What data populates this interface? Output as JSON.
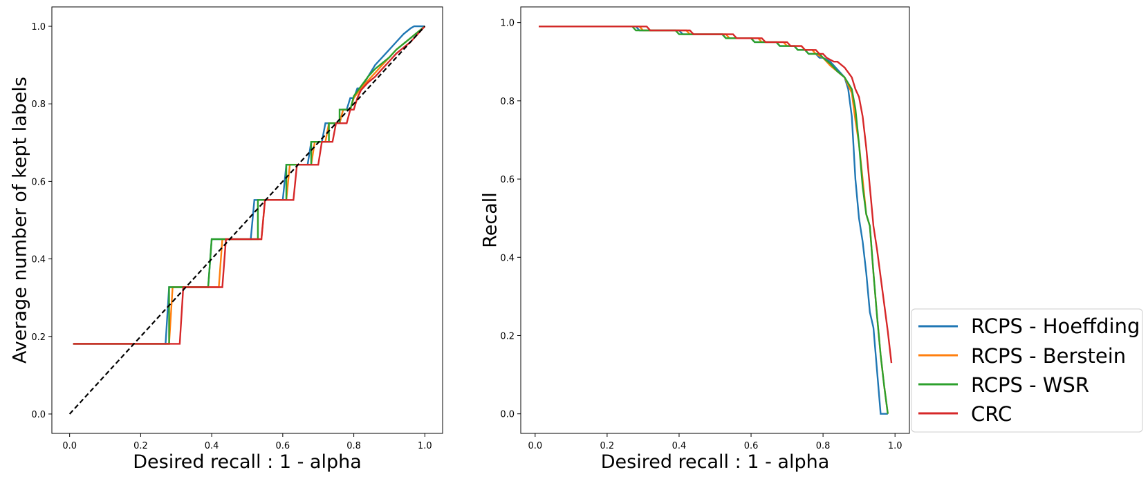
{
  "colors": {
    "hoeffding": "#1f77b4",
    "berstein": "#ff7f0e",
    "wsr": "#2ca02c",
    "crc": "#d62728",
    "diagonal": "#000000"
  },
  "legend": {
    "placement": "lower-right, outside right panel",
    "entries": [
      "RCPS - Hoeffding",
      "RCPS - Berstein",
      "RCPS - WSR",
      "CRC"
    ]
  },
  "chart_data": [
    {
      "type": "line",
      "title": "",
      "xlabel": "Desired recall : 1 - alpha",
      "ylabel": "Average number of kept labels",
      "xlim": [
        -0.05,
        1.05
      ],
      "ylim": [
        -0.05,
        1.05
      ],
      "xticks": [
        "0.0",
        "0.2",
        "0.4",
        "0.6",
        "0.8",
        "1.0"
      ],
      "yticks": [
        "0.0",
        "0.2",
        "0.4",
        "0.6",
        "0.8",
        "1.0"
      ],
      "grid": false,
      "reference_line": {
        "x": [
          0,
          1
        ],
        "y": [
          0,
          1
        ],
        "style": "dashed"
      },
      "series": [
        {
          "name": "RCPS - Hoeffding",
          "color_key": "hoeffding",
          "x": [
            0.01,
            0.27,
            0.28,
            0.3,
            0.31,
            0.39,
            0.4,
            0.51,
            0.52,
            0.6,
            0.61,
            0.67,
            0.68,
            0.71,
            0.72,
            0.76,
            0.77,
            0.78,
            0.79,
            0.8,
            0.81,
            0.82,
            0.84,
            0.86,
            0.88,
            0.9,
            0.92,
            0.94,
            0.96,
            0.97,
            1.0
          ],
          "y": [
            0.181,
            0.181,
            0.327,
            0.327,
            0.327,
            0.327,
            0.451,
            0.451,
            0.552,
            0.552,
            0.643,
            0.643,
            0.702,
            0.702,
            0.75,
            0.75,
            0.785,
            0.785,
            0.815,
            0.815,
            0.84,
            0.84,
            0.87,
            0.9,
            0.92,
            0.94,
            0.96,
            0.98,
            0.995,
            1.0,
            1.0
          ]
        },
        {
          "name": "RCPS - Berstein",
          "color_key": "berstein",
          "x": [
            0.01,
            0.28,
            0.29,
            0.42,
            0.43,
            0.54,
            0.55,
            0.61,
            0.62,
            0.68,
            0.69,
            0.72,
            0.73,
            0.76,
            0.77,
            0.79,
            0.8,
            0.82,
            0.84,
            0.86,
            0.88,
            0.9,
            0.92,
            0.94,
            0.96,
            0.98,
            1.0
          ],
          "y": [
            0.181,
            0.181,
            0.327,
            0.327,
            0.451,
            0.451,
            0.552,
            0.552,
            0.643,
            0.643,
            0.702,
            0.702,
            0.75,
            0.75,
            0.785,
            0.785,
            0.815,
            0.84,
            0.86,
            0.88,
            0.9,
            0.92,
            0.94,
            0.955,
            0.97,
            0.985,
            1.0
          ]
        },
        {
          "name": "RCPS - WSR",
          "color_key": "wsr",
          "x": [
            0.01,
            0.28,
            0.28,
            0.39,
            0.4,
            0.53,
            0.53,
            0.61,
            0.61,
            0.68,
            0.68,
            0.73,
            0.73,
            0.76,
            0.76,
            0.79,
            0.8,
            0.82,
            0.84,
            0.86,
            0.88,
            0.9,
            0.92,
            0.94,
            0.96,
            0.98,
            1.0
          ],
          "y": [
            0.181,
            0.181,
            0.327,
            0.327,
            0.451,
            0.451,
            0.552,
            0.552,
            0.643,
            0.643,
            0.702,
            0.702,
            0.75,
            0.75,
            0.785,
            0.785,
            0.82,
            0.845,
            0.87,
            0.89,
            0.905,
            0.92,
            0.94,
            0.955,
            0.97,
            0.985,
            1.0
          ]
        },
        {
          "name": "CRC",
          "color_key": "crc",
          "x": [
            0.01,
            0.31,
            0.32,
            0.43,
            0.44,
            0.54,
            0.55,
            0.63,
            0.64,
            0.7,
            0.71,
            0.74,
            0.75,
            0.78,
            0.79,
            0.8,
            0.81,
            0.82,
            0.84,
            0.86,
            0.88,
            0.9,
            0.92,
            0.94,
            0.96,
            0.98,
            1.0
          ],
          "y": [
            0.181,
            0.181,
            0.327,
            0.327,
            0.451,
            0.451,
            0.552,
            0.552,
            0.643,
            0.643,
            0.702,
            0.702,
            0.75,
            0.75,
            0.785,
            0.785,
            0.815,
            0.835,
            0.855,
            0.87,
            0.89,
            0.91,
            0.93,
            0.945,
            0.96,
            0.98,
            1.0
          ]
        }
      ]
    },
    {
      "type": "line",
      "title": "",
      "xlabel": "Desired recall : 1 - alpha",
      "ylabel": "Recall",
      "xlim": [
        -0.04,
        1.04
      ],
      "ylim": [
        -0.05,
        1.04
      ],
      "xticks": [
        "0.0",
        "0.2",
        "0.4",
        "0.6",
        "0.8",
        "1.0"
      ],
      "yticks": [
        "0.0",
        "0.2",
        "0.4",
        "0.6",
        "0.8",
        "1.0"
      ],
      "grid": false,
      "series": [
        {
          "name": "RCPS - Hoeffding",
          "color_key": "hoeffding",
          "x": [
            0.01,
            0.28,
            0.29,
            0.4,
            0.41,
            0.52,
            0.53,
            0.6,
            0.61,
            0.67,
            0.68,
            0.72,
            0.73,
            0.75,
            0.76,
            0.78,
            0.79,
            0.8,
            0.82,
            0.84,
            0.86,
            0.87,
            0.88,
            0.89,
            0.9,
            0.91,
            0.92,
            0.93,
            0.94,
            0.95,
            0.96,
            0.97,
            0.98
          ],
          "y": [
            0.99,
            0.99,
            0.98,
            0.98,
            0.97,
            0.97,
            0.96,
            0.96,
            0.95,
            0.95,
            0.94,
            0.94,
            0.93,
            0.93,
            0.92,
            0.92,
            0.91,
            0.91,
            0.9,
            0.88,
            0.86,
            0.83,
            0.76,
            0.6,
            0.5,
            0.44,
            0.36,
            0.26,
            0.22,
            0.11,
            0.0,
            0.0,
            0.0
          ]
        },
        {
          "name": "RCPS - Berstein",
          "color_key": "berstein",
          "x": [
            0.01,
            0.29,
            0.3,
            0.42,
            0.43,
            0.53,
            0.54,
            0.62,
            0.63,
            0.69,
            0.7,
            0.74,
            0.75,
            0.77,
            0.78,
            0.8,
            0.82,
            0.84,
            0.86,
            0.88,
            0.89,
            0.9,
            0.91,
            0.92,
            0.93,
            0.94,
            0.95,
            0.96,
            0.97,
            0.98
          ],
          "y": [
            0.99,
            0.99,
            0.98,
            0.98,
            0.97,
            0.97,
            0.96,
            0.96,
            0.95,
            0.95,
            0.94,
            0.94,
            0.93,
            0.93,
            0.92,
            0.91,
            0.89,
            0.875,
            0.86,
            0.82,
            0.75,
            0.69,
            0.6,
            0.51,
            0.48,
            0.36,
            0.25,
            0.15,
            0.07,
            0.0
          ]
        },
        {
          "name": "RCPS - WSR",
          "color_key": "wsr",
          "x": [
            0.01,
            0.27,
            0.28,
            0.39,
            0.4,
            0.52,
            0.53,
            0.6,
            0.61,
            0.67,
            0.68,
            0.72,
            0.73,
            0.75,
            0.76,
            0.79,
            0.8,
            0.82,
            0.84,
            0.86,
            0.88,
            0.89,
            0.9,
            0.91,
            0.92,
            0.93,
            0.94,
            0.95,
            0.96,
            0.97,
            0.98
          ],
          "y": [
            0.99,
            0.99,
            0.98,
            0.98,
            0.97,
            0.97,
            0.96,
            0.96,
            0.95,
            0.95,
            0.94,
            0.94,
            0.93,
            0.93,
            0.92,
            0.92,
            0.91,
            0.895,
            0.875,
            0.86,
            0.83,
            0.78,
            0.69,
            0.58,
            0.51,
            0.48,
            0.36,
            0.25,
            0.15,
            0.07,
            0.0
          ]
        },
        {
          "name": "CRC",
          "color_key": "crc",
          "x": [
            0.01,
            0.31,
            0.32,
            0.43,
            0.44,
            0.55,
            0.56,
            0.63,
            0.64,
            0.7,
            0.71,
            0.74,
            0.75,
            0.78,
            0.79,
            0.8,
            0.81,
            0.82,
            0.83,
            0.84,
            0.86,
            0.88,
            0.89,
            0.9,
            0.91,
            0.92,
            0.93,
            0.94,
            0.95,
            0.96,
            0.97,
            0.98,
            0.99
          ],
          "y": [
            0.99,
            0.99,
            0.98,
            0.98,
            0.97,
            0.97,
            0.96,
            0.96,
            0.95,
            0.95,
            0.94,
            0.94,
            0.93,
            0.93,
            0.92,
            0.92,
            0.91,
            0.905,
            0.9,
            0.9,
            0.885,
            0.86,
            0.83,
            0.81,
            0.76,
            0.68,
            0.58,
            0.48,
            0.42,
            0.35,
            0.28,
            0.21,
            0.13
          ]
        }
      ]
    }
  ]
}
